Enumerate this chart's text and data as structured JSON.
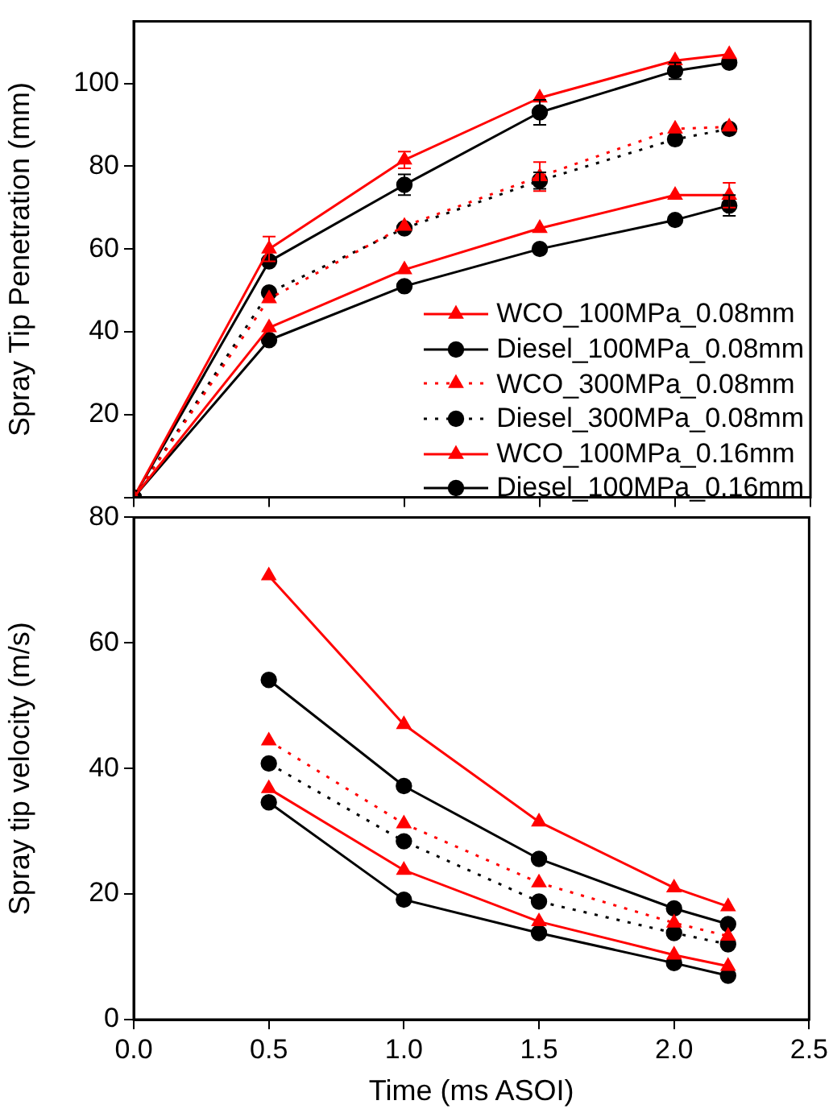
{
  "chart_data": [
    {
      "type": "line",
      "ylabel": "Spray Tip Penetration (mm)",
      "xlim": [
        0,
        2.5
      ],
      "xticks": [
        0,
        0.5,
        1.0,
        1.5,
        2.0,
        2.5
      ],
      "ylim": [
        0,
        115
      ],
      "yticks": [
        {
          "value": 0,
          "label": null
        },
        20,
        40,
        60,
        80,
        100
      ],
      "tick_labels": "y",
      "grid": false,
      "legend": "bottom right",
      "x": [
        0,
        0.5,
        1.0,
        1.5,
        2.0,
        2.2
      ],
      "series": [
        {
          "name": "WCO_100MPa_0.08mm",
          "color": "#ff0000",
          "marker": "triangle",
          "line_style": "solid",
          "values": [
            0,
            41,
            55,
            65,
            73,
            73
          ],
          "errors": [
            null,
            null,
            null,
            null,
            null,
            3
          ]
        },
        {
          "name": "Diesel_100MPa_0.08mm",
          "color": "#000000",
          "marker": "circle",
          "line_style": "solid",
          "values": [
            0,
            38,
            51,
            60,
            67,
            70.5
          ],
          "errors": [
            null,
            null,
            null,
            null,
            null,
            2.5
          ]
        },
        {
          "name": "WCO_300MPa_0.08mm",
          "color": "#ff0000",
          "marker": "triangle",
          "line_style": "dotted",
          "values": [
            0,
            48,
            65.5,
            77.5,
            89,
            89.5
          ],
          "errors": [
            null,
            null,
            null,
            3.5,
            null,
            null
          ]
        },
        {
          "name": "Diesel_300MPa_0.08mm",
          "color": "#000000",
          "marker": "circle",
          "line_style": "dotted",
          "values": [
            0,
            49.5,
            65,
            76.5,
            86.5,
            89
          ],
          "errors": [
            null,
            null,
            null,
            2,
            null,
            null
          ]
        },
        {
          "name": "WCO_100MPa_0.16mm",
          "color": "#ff0000",
          "marker": "triangle",
          "line_style": "solid",
          "values": [
            0,
            60,
            81.5,
            96.5,
            105.5,
            107
          ],
          "errors": [
            null,
            3,
            2,
            null,
            null,
            null
          ]
        },
        {
          "name": "Diesel_100MPa_0.16mm",
          "color": "#000000",
          "marker": "circle",
          "line_style": "solid",
          "values": [
            0,
            57,
            75.5,
            93,
            103,
            105
          ],
          "errors": [
            null,
            null,
            2.5,
            3,
            2,
            null
          ]
        }
      ]
    },
    {
      "type": "line",
      "xlabel": "Time (ms ASOI)",
      "ylabel": "Spray tip velocity (m/s)",
      "xlim": [
        0,
        2.5
      ],
      "xticks": [
        {
          "value": 0,
          "label": "0.0"
        },
        0.5,
        {
          "value": 1,
          "label": "1.0"
        },
        1.5,
        {
          "value": 2,
          "label": "2.0"
        },
        2.5
      ],
      "ylim": [
        0,
        80
      ],
      "yticks": [
        0,
        20,
        40,
        60,
        80
      ],
      "grid": false,
      "x": [
        0.5,
        1.0,
        1.5,
        2.0,
        2.2
      ],
      "series": [
        {
          "color": "#ff0000",
          "marker": "triangle",
          "line_style": "solid",
          "values": [
            36.8,
            23.8,
            15.6,
            10.3,
            8.5
          ]
        },
        {
          "color": "#000000",
          "marker": "circle",
          "line_style": "solid",
          "values": [
            34.6,
            19.1,
            13.8,
            9,
            7
          ]
        },
        {
          "color": "#ff0000",
          "marker": "triangle",
          "line_style": "dotted",
          "values": [
            44.4,
            31.2,
            21.8,
            15.4,
            13.3
          ]
        },
        {
          "color": "#000000",
          "marker": "circle",
          "line_style": "dotted",
          "values": [
            40.8,
            28.4,
            18.8,
            13.8,
            12
          ]
        },
        {
          "color": "#ff0000",
          "marker": "triangle",
          "line_style": "solid",
          "values": [
            70.7,
            47,
            31.5,
            21,
            18
          ]
        },
        {
          "color": "#000000",
          "marker": "circle",
          "line_style": "solid",
          "values": [
            54.1,
            37.2,
            25.6,
            17.7,
            15.2
          ]
        }
      ]
    }
  ]
}
